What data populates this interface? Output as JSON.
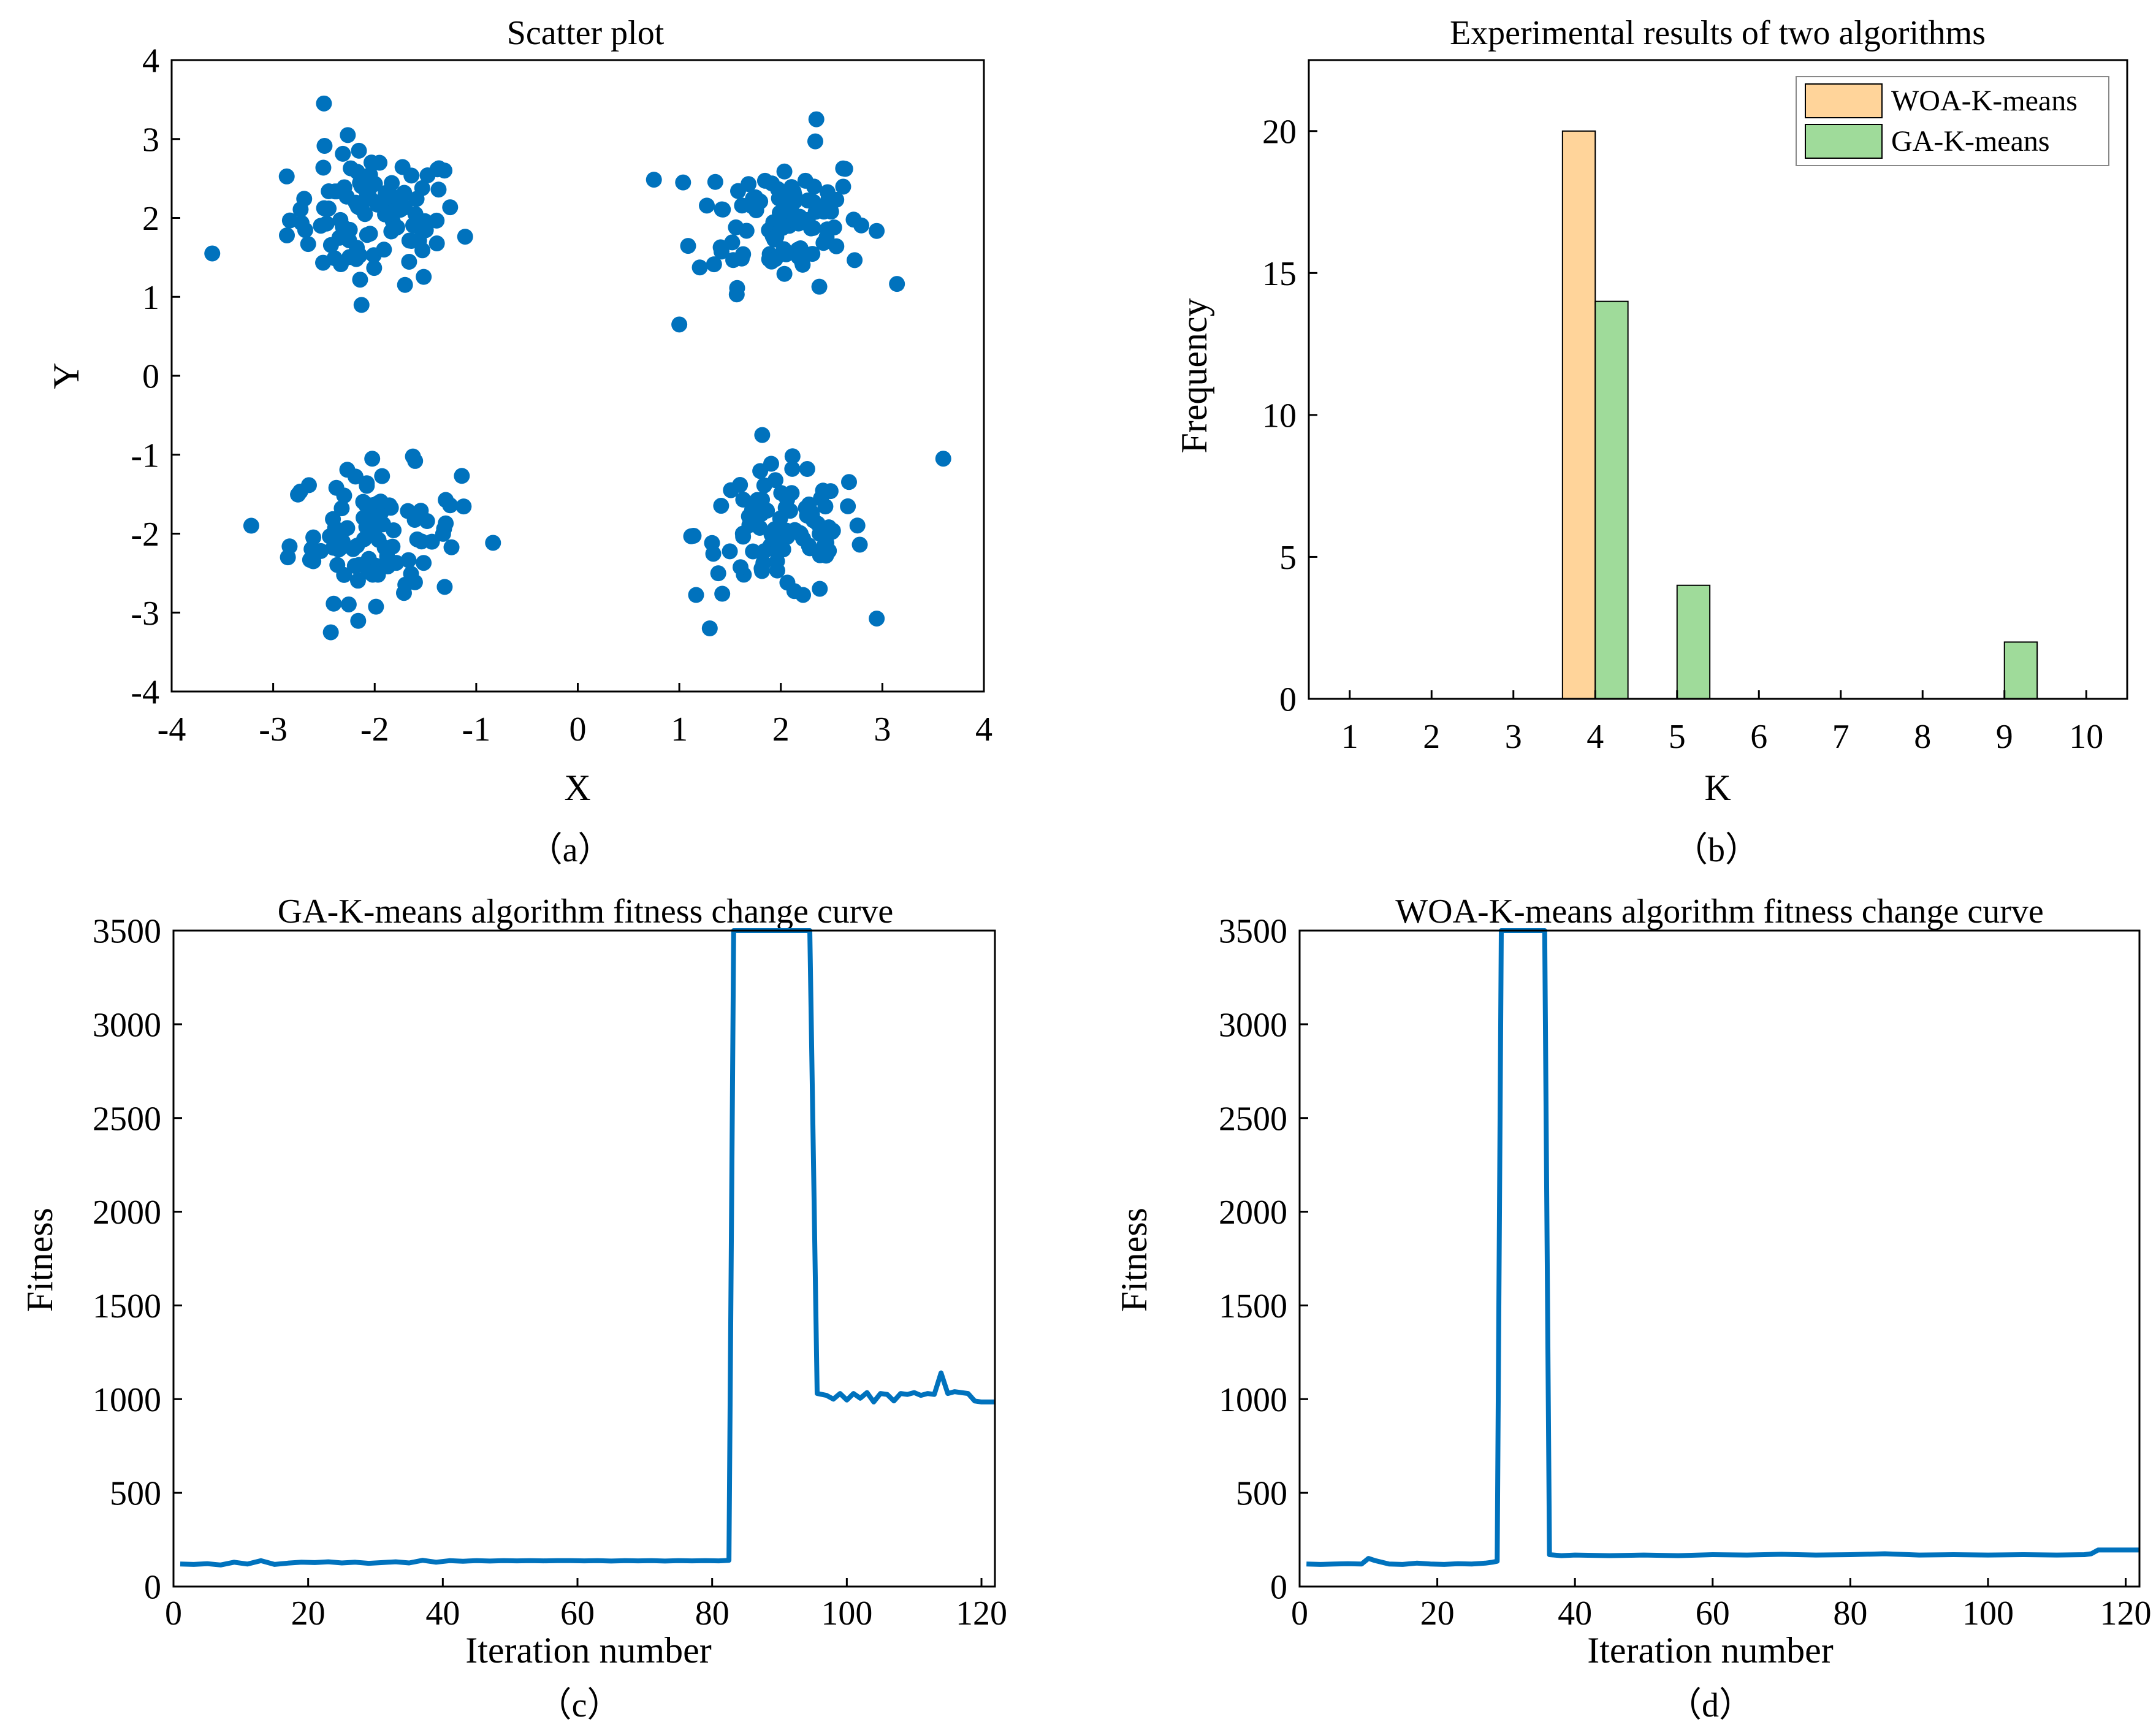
{
  "chart_data": [
    {
      "id": "a",
      "type": "scatter",
      "title": "Scatter plot",
      "xlabel": "X",
      "ylabel": "Y",
      "caption": "（a）",
      "xlim": [
        -4,
        4
      ],
      "ylim": [
        -4,
        4
      ],
      "xticks": [
        -4,
        -3,
        -2,
        -1,
        0,
        1,
        2,
        3,
        4
      ],
      "yticks": [
        -4,
        -3,
        -2,
        -1,
        0,
        1,
        2,
        3,
        4
      ],
      "marker_color": "#0072BD",
      "clusters": [
        {
          "center": [
            -2,
            2
          ],
          "n": 100
        },
        {
          "center": [
            2,
            2
          ],
          "n": 100
        },
        {
          "center": [
            -2,
            -2
          ],
          "n": 100
        },
        {
          "center": [
            2,
            -2
          ],
          "n": 100
        }
      ],
      "outliers": [
        [
          -3.6,
          1.55
        ],
        [
          1.0,
          0.65
        ],
        [
          3.6,
          -1.05
        ],
        [
          -2.5,
          3.45
        ],
        [
          2.35,
          3.25
        ],
        [
          1.3,
          -3.2
        ]
      ]
    },
    {
      "id": "b",
      "type": "bar",
      "title": "Experimental results of two algorithms",
      "xlabel": "K",
      "ylabel": "Frequency",
      "caption": "（b）",
      "categories": [
        1,
        2,
        3,
        4,
        5,
        6,
        7,
        8,
        9,
        10
      ],
      "xlim": [
        0.5,
        10.5
      ],
      "ylim": [
        0,
        22.5
      ],
      "yticks": [
        0,
        5,
        10,
        15,
        20
      ],
      "series": [
        {
          "name": "WOA-K-means",
          "color": "#FFD49A",
          "values": [
            0,
            0,
            0,
            20,
            0,
            0,
            0,
            0,
            0,
            0
          ]
        },
        {
          "name": "GA-K-means",
          "color": "#9FDB9A",
          "values": [
            0,
            0,
            0,
            14,
            4,
            0,
            0,
            0,
            2,
            0
          ]
        }
      ],
      "legend": "top-right"
    },
    {
      "id": "c",
      "type": "line",
      "title": "GA-K-means algorithm fitness change curve",
      "xlabel": "Iteration number",
      "ylabel": "Fitness",
      "caption": "（c）",
      "xlim": [
        0,
        122
      ],
      "ylim": [
        0,
        3500
      ],
      "xticks": [
        0,
        20,
        40,
        60,
        80,
        100,
        120
      ],
      "yticks": [
        0,
        500,
        1000,
        1500,
        2000,
        2500,
        3000,
        3500
      ],
      "color": "#0072BD",
      "points": [
        [
          1,
          120
        ],
        [
          3,
          118
        ],
        [
          5,
          122
        ],
        [
          7,
          115
        ],
        [
          9,
          130
        ],
        [
          11,
          120
        ],
        [
          13,
          138
        ],
        [
          15,
          118
        ],
        [
          17,
          125
        ],
        [
          19,
          130
        ],
        [
          21,
          128
        ],
        [
          23,
          132
        ],
        [
          25,
          126
        ],
        [
          27,
          130
        ],
        [
          29,
          124
        ],
        [
          31,
          128
        ],
        [
          33,
          132
        ],
        [
          35,
          126
        ],
        [
          37,
          140
        ],
        [
          39,
          130
        ],
        [
          41,
          138
        ],
        [
          43,
          135
        ],
        [
          45,
          138
        ],
        [
          47,
          136
        ],
        [
          49,
          138
        ],
        [
          51,
          137
        ],
        [
          53,
          138
        ],
        [
          55,
          137
        ],
        [
          57,
          138
        ],
        [
          59,
          138
        ],
        [
          61,
          137
        ],
        [
          63,
          138
        ],
        [
          65,
          136
        ],
        [
          67,
          138
        ],
        [
          69,
          137
        ],
        [
          71,
          138
        ],
        [
          73,
          136
        ],
        [
          75,
          138
        ],
        [
          77,
          137
        ],
        [
          79,
          138
        ],
        [
          81,
          137
        ],
        [
          82.5,
          140
        ],
        [
          83.2,
          3500
        ],
        [
          94.5,
          3500
        ],
        [
          95.6,
          1030
        ],
        [
          97,
          1020
        ],
        [
          98,
          1000
        ],
        [
          99,
          1030
        ],
        [
          100,
          995
        ],
        [
          101,
          1030
        ],
        [
          102,
          1005
        ],
        [
          103,
          1035
        ],
        [
          104,
          985
        ],
        [
          105,
          1030
        ],
        [
          106,
          1025
        ],
        [
          107,
          990
        ],
        [
          108,
          1030
        ],
        [
          109,
          1025
        ],
        [
          110,
          1035
        ],
        [
          111,
          1020
        ],
        [
          112,
          1030
        ],
        [
          113,
          1025
        ],
        [
          114,
          1140
        ],
        [
          115,
          1030
        ],
        [
          116,
          1040
        ],
        [
          117,
          1035
        ],
        [
          118,
          1030
        ],
        [
          119,
          990
        ],
        [
          120,
          985
        ],
        [
          122,
          985
        ]
      ]
    },
    {
      "id": "d",
      "type": "line",
      "title": "WOA-K-means algorithm fitness change curve",
      "xlabel": "Iteration number",
      "ylabel": "Fitness",
      "caption": "（d）",
      "xlim": [
        0,
        122
      ],
      "ylim": [
        0,
        3500
      ],
      "xticks": [
        0,
        20,
        40,
        60,
        80,
        100,
        120
      ],
      "yticks": [
        0,
        500,
        1000,
        1500,
        2000,
        2500,
        3000,
        3500
      ],
      "color": "#0072BD",
      "points": [
        [
          1,
          120
        ],
        [
          3,
          118
        ],
        [
          5,
          120
        ],
        [
          7,
          122
        ],
        [
          9,
          120
        ],
        [
          10,
          150
        ],
        [
          11,
          138
        ],
        [
          13,
          120
        ],
        [
          15,
          118
        ],
        [
          17,
          125
        ],
        [
          19,
          120
        ],
        [
          21,
          118
        ],
        [
          23,
          122
        ],
        [
          25,
          120
        ],
        [
          27,
          125
        ],
        [
          28,
          130
        ],
        [
          28.7,
          135
        ],
        [
          29.3,
          3500
        ],
        [
          35.6,
          3500
        ],
        [
          36.3,
          170
        ],
        [
          38,
          165
        ],
        [
          40,
          168
        ],
        [
          45,
          165
        ],
        [
          50,
          168
        ],
        [
          55,
          165
        ],
        [
          60,
          170
        ],
        [
          65,
          168
        ],
        [
          70,
          172
        ],
        [
          75,
          168
        ],
        [
          80,
          170
        ],
        [
          85,
          175
        ],
        [
          90,
          168
        ],
        [
          95,
          170
        ],
        [
          100,
          168
        ],
        [
          105,
          170
        ],
        [
          110,
          168
        ],
        [
          114,
          170
        ],
        [
          115,
          175
        ],
        [
          116,
          195
        ],
        [
          118,
          195
        ],
        [
          120,
          195
        ],
        [
          122,
          195
        ]
      ]
    }
  ]
}
